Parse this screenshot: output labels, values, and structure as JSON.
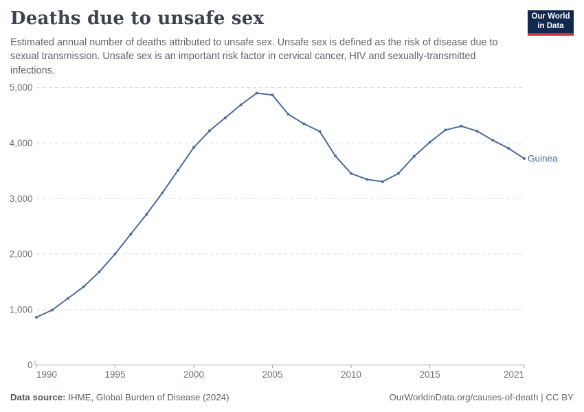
{
  "header": {
    "title": "Deaths due to unsafe sex",
    "subtitle": "Estimated annual number of deaths attributed to unsafe sex. Unsafe sex is defined as the risk of disease due to sexual transmission. Unsafe sex is an important risk factor in cervical cancer, HIV and sexually-transmitted infections.",
    "logo": {
      "line1": "Our World",
      "line2": "in Data",
      "bg_color": "#12294e",
      "bar_color": "#d0342f"
    }
  },
  "chart_data": {
    "type": "line",
    "title": "Deaths due to unsafe sex",
    "xlabel": "",
    "ylabel": "",
    "xlim": [
      1990,
      2021
    ],
    "ylim": [
      0,
      5000
    ],
    "grid": "horizontal-dashed",
    "legend": "line-end-label",
    "x": [
      1990,
      1991,
      1992,
      1993,
      1994,
      1995,
      1996,
      1997,
      1998,
      1999,
      2000,
      2001,
      2002,
      2003,
      2004,
      2005,
      2006,
      2007,
      2008,
      2009,
      2010,
      2011,
      2012,
      2013,
      2014,
      2015,
      2016,
      2017,
      2018,
      2019,
      2020,
      2021
    ],
    "series": [
      {
        "name": "Guinea",
        "color": "#4C6A9C",
        "values": [
          860,
          990,
          1200,
          1410,
          1680,
          2000,
          2360,
          2715,
          3100,
          3510,
          3920,
          4220,
          4455,
          4690,
          4900,
          4865,
          4520,
          4345,
          4210,
          3765,
          3450,
          3345,
          3305,
          3450,
          3760,
          4015,
          4235,
          4305,
          4215,
          4050,
          3905,
          3720
        ]
      }
    ],
    "y_ticks": [
      {
        "value": 0,
        "label": "0"
      },
      {
        "value": 1000,
        "label": "1,000"
      },
      {
        "value": 2000,
        "label": "2,000"
      },
      {
        "value": 3000,
        "label": "3,000"
      },
      {
        "value": 4000,
        "label": "4,000"
      },
      {
        "value": 5000,
        "label": "5,000"
      }
    ],
    "x_ticks": [
      {
        "value": 1990,
        "label": "1990"
      },
      {
        "value": 1995,
        "label": "1995"
      },
      {
        "value": 2000,
        "label": "2000"
      },
      {
        "value": 2005,
        "label": "2005"
      },
      {
        "value": 2010,
        "label": "2010"
      },
      {
        "value": 2015,
        "label": "2015"
      },
      {
        "value": 2021,
        "label": "2021"
      }
    ],
    "end_label": "Guinea"
  },
  "footer": {
    "source_label": "Data source:",
    "source_text": " IHME, Global Burden of Disease (2024)",
    "credit": "OurWorldinData.org/causes-of-death | CC BY"
  },
  "colors": {
    "line": "#4C6A9C",
    "gridline": "#dcdde1",
    "axis": "#a2a4aa",
    "tick_text": "#6f7278"
  }
}
